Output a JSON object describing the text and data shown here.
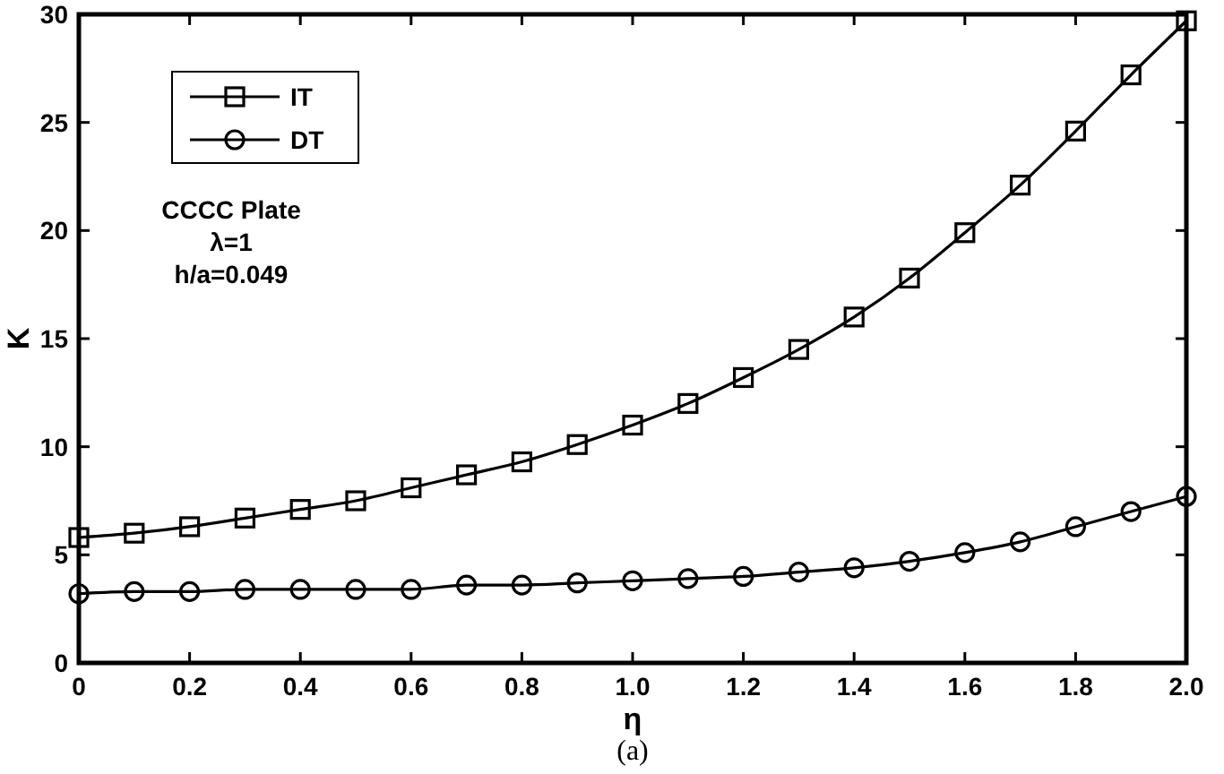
{
  "chart_data": {
    "type": "line",
    "xlabel": "η",
    "ylabel": "K",
    "annotations": [
      "CCCC Plate",
      "λ=1",
      "h/a=0.049",
      "(a)"
    ],
    "x": [
      0,
      0.1,
      0.2,
      0.3,
      0.4,
      0.5,
      0.6,
      0.7,
      0.8,
      0.9,
      1.0,
      1.1,
      1.2,
      1.3,
      1.4,
      1.5,
      1.6,
      1.7,
      1.8,
      1.9,
      2.0
    ],
    "series": [
      {
        "name": "IT",
        "color": "#000000",
        "marker": "square",
        "values": [
          5.8,
          6.0,
          6.3,
          6.7,
          7.1,
          7.5,
          8.1,
          8.7,
          9.3,
          10.1,
          11.0,
          12.0,
          13.2,
          14.5,
          16.0,
          17.8,
          19.9,
          22.1,
          24.6,
          27.2,
          29.7
        ]
      },
      {
        "name": "DT",
        "color": "#000000",
        "marker": "circle",
        "values": [
          3.2,
          3.3,
          3.3,
          3.4,
          3.4,
          3.4,
          3.4,
          3.6,
          3.6,
          3.7,
          3.8,
          3.9,
          4.0,
          4.2,
          4.4,
          4.7,
          5.1,
          5.6,
          6.3,
          7.0,
          7.7
        ]
      }
    ],
    "xlim": [
      0,
      2
    ],
    "ylim": [
      0,
      30
    ],
    "xticks": [
      {
        "value": 0,
        "label": "0"
      },
      {
        "value": 0.2,
        "label": "0.2"
      },
      {
        "value": 0.4,
        "label": "0.4"
      },
      {
        "value": 0.6,
        "label": "0.6"
      },
      {
        "value": 0.8,
        "label": "0.8"
      },
      {
        "value": 1,
        "label": "1.0"
      },
      {
        "value": 1.2,
        "label": "1.2"
      },
      {
        "value": 1.4,
        "label": "1.4"
      },
      {
        "value": 1.6,
        "label": "1.6"
      },
      {
        "value": 1.8,
        "label": "1.8"
      },
      {
        "value": 2,
        "label": "2.0"
      }
    ],
    "yticks": [
      0,
      5,
      10,
      15,
      20,
      25,
      30
    ],
    "grid": false,
    "legend": "top left",
    "line_style": "solid"
  }
}
